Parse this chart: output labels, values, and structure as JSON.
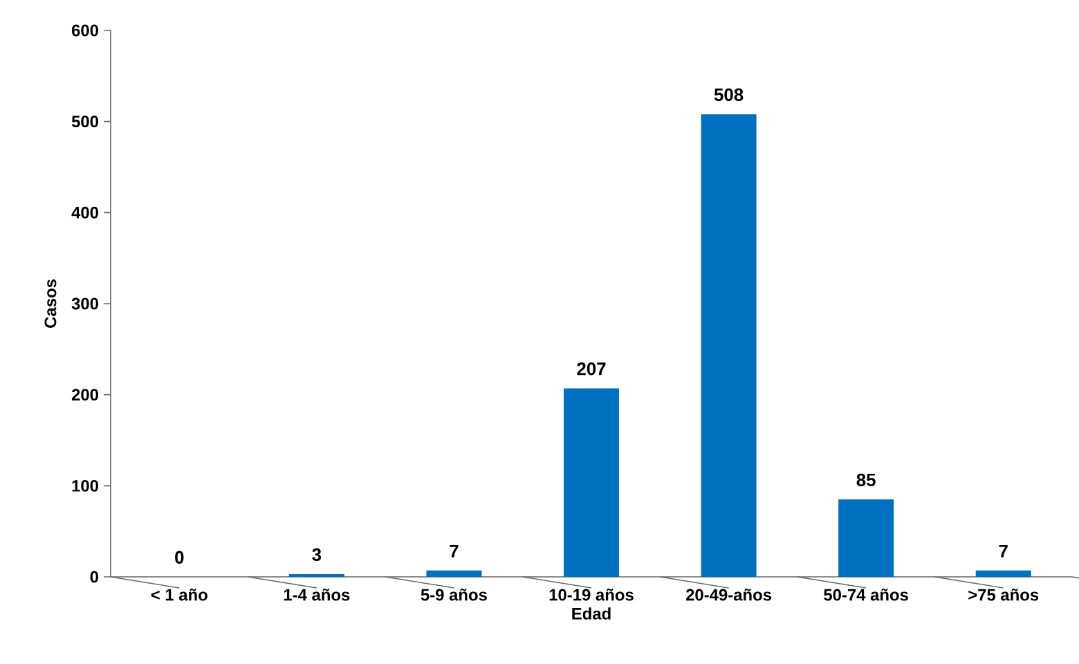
{
  "chart_data": {
    "type": "bar",
    "xlabel": "Edad",
    "ylabel": "Casos",
    "categories": [
      "< 1 año",
      "1-4 años",
      "5-9 años",
      "10-19 años",
      "20-49-años",
      "50-74 años",
      ">75 años"
    ],
    "values": [
      0,
      3,
      7,
      207,
      508,
      85,
      7
    ],
    "color": "#0070c0",
    "ylim": [
      0,
      600
    ],
    "yticks": [
      0,
      100,
      200,
      300,
      400,
      500,
      600
    ],
    "data_labels": true
  }
}
